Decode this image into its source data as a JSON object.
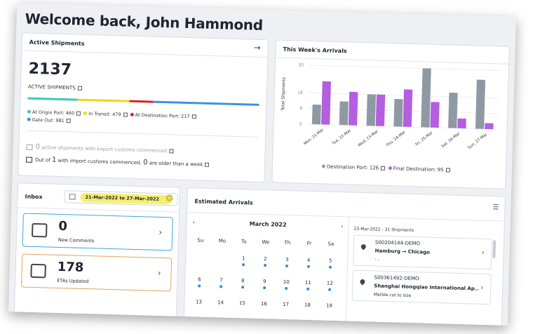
{
  "welcome": "Welcome back, John Hammond",
  "active": {
    "title": "Active Shipments",
    "count": "2137",
    "label": "ACTIVE SHIPMENTS",
    "legend": {
      "origin": "At Origin Port: 460",
      "transit": "In Transit: 479",
      "dest": "At Destination Port: 217",
      "gateout": "Gate Out: 981"
    },
    "export_num": "0",
    "export_text": "active shipments with export customs commenced",
    "import_pre": "Out of",
    "import_num": "1",
    "import_mid": "with import customs commenced.",
    "import_old": "0",
    "import_post": "are older than a week",
    "colors": {
      "origin": "#3ec7c0",
      "transit": "#e9d81f",
      "dest": "#d62424",
      "gateout": "#3a93e0"
    }
  },
  "arrivals": {
    "title": "This Week's Arrivals",
    "legend_dest": "Destination Port: 126",
    "legend_final": "Final Destination: 95"
  },
  "chart_data": {
    "type": "bar",
    "categories": [
      "Mon, 21-Mar",
      "Tue, 22-Mar",
      "Wed, 23-Mar",
      "Thu, 24-Mar",
      "Fri, 25-Mar",
      "Sat, 26-Mar",
      "Sun, 27-Mar"
    ],
    "series": [
      {
        "name": "Destination Port: 126",
        "values": [
          10,
          12,
          16,
          14,
          30,
          18,
          25
        ],
        "color": "#8f99a3"
      },
      {
        "name": "Final Destination: 95",
        "values": [
          22,
          17,
          16,
          19,
          13,
          5,
          3
        ],
        "color": "#b45ee0"
      }
    ],
    "ylabel": "Total Shipments",
    "yticks": [
      0,
      8,
      16,
      30
    ],
    "ylim": [
      0,
      30
    ],
    "legend": "bottom"
  },
  "inbox": {
    "title": "Inbox",
    "range": "21-Mar-2022 to 27-Mar-2022",
    "comments_count": "0",
    "comments_label": "New Comments",
    "etas_count": "178",
    "etas_label": "ETAs Updated"
  },
  "estimated": {
    "title": "Estimated Arrivals",
    "month": "March 2022",
    "dows": [
      "Su",
      "Mo",
      "Tu",
      "We",
      "Th",
      "Fr",
      "Sa"
    ],
    "weeks": [
      [
        null,
        null,
        {
          "d": "1",
          "dot": true
        },
        {
          "d": "2",
          "dot": true
        },
        {
          "d": "3",
          "dot": true
        },
        {
          "d": "4",
          "dot": true
        },
        {
          "d": "5",
          "dot": true
        }
      ],
      [
        {
          "d": "6",
          "dot": true
        },
        {
          "d": "7",
          "dot": true
        },
        {
          "d": "8",
          "dot": true
        },
        {
          "d": "9",
          "dot": true
        },
        {
          "d": "10",
          "dot": true
        },
        {
          "d": "11",
          "dot": true
        },
        {
          "d": "12",
          "dot": true
        }
      ],
      [
        {
          "d": "13",
          "dot": false
        },
        {
          "d": "14",
          "dot": false
        },
        {
          "d": "15",
          "dot": false
        },
        {
          "d": "16",
          "dot": false
        },
        {
          "d": "17",
          "dot": false
        },
        {
          "d": "18",
          "dot": false
        },
        {
          "d": "19",
          "dot": false
        }
      ]
    ],
    "list_head": "23-Mar-2022 - 31 Shipments",
    "shipments": [
      {
        "id": "S00204144-DEMO",
        "route": "Hamburg → Chicago",
        "note": "- -"
      },
      {
        "id": "S00361492-DEMO",
        "route": "Shanghai Hongqiao International Ap...",
        "note": "Marble cut to size"
      }
    ]
  }
}
